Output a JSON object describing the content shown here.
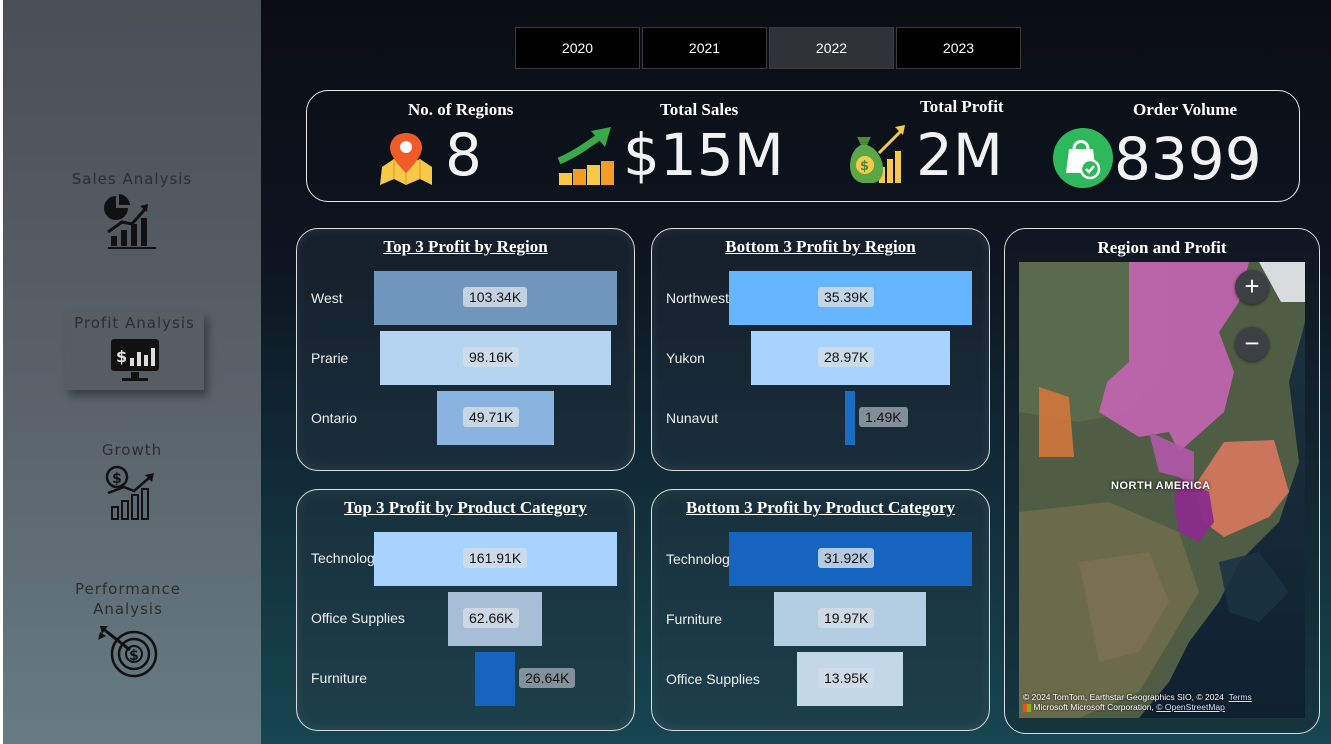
{
  "sidebar": {
    "items": [
      {
        "label": "Sales Analysis",
        "icon": "pie-bar-chart-icon"
      },
      {
        "label": "Profit Analysis",
        "icon": "profit-monitor-icon"
      },
      {
        "label": "Growth",
        "icon": "growth-dollar-chart-icon"
      },
      {
        "label_line1": "Performance",
        "label_line2": "Analysis",
        "icon": "target-dollar-icon"
      }
    ]
  },
  "years": {
    "options": [
      "2020",
      "2021",
      "2022",
      "2023"
    ],
    "selected": "2022"
  },
  "kpis": {
    "regions": {
      "title": "No. of Regions",
      "value": "8",
      "icon": "map-pin-icon"
    },
    "sales": {
      "title": "Total Sales",
      "value": "$15M",
      "icon": "growth-bars-arrow-icon"
    },
    "profit": {
      "title": "Total Profit",
      "value": "2M",
      "icon": "money-bag-icon"
    },
    "orders": {
      "title": "Order Volume",
      "value": "8399",
      "icon": "shopping-bag-check-icon"
    }
  },
  "top_region": {
    "title": "Top 3 Profit by Region",
    "rows": [
      {
        "label": "West",
        "value_label": "103.34K",
        "value": 103.34,
        "color": "#7096bd"
      },
      {
        "label": "Prarie",
        "value_label": "98.16K",
        "value": 98.16,
        "color": "#b5d4f0"
      },
      {
        "label": "Ontario",
        "value_label": "49.71K",
        "value": 49.71,
        "color": "#8ab4e0"
      }
    ]
  },
  "bottom_region": {
    "title": "Bottom 3 Profit by Region",
    "rows": [
      {
        "label": "Northwest",
        "value_label": "35.39K",
        "value": 35.39,
        "color": "#66b6ff"
      },
      {
        "label": "Yukon",
        "value_label": "28.97K",
        "value": 28.97,
        "color": "#a8d3ff"
      },
      {
        "label": "Nunavut",
        "value_label": "1.49K",
        "value": 1.49,
        "color": "#1a6cc4"
      }
    ]
  },
  "top_category": {
    "title": "Top 3 Profit by Product Category",
    "rows": [
      {
        "label": "Technology",
        "value_label": "161.91K",
        "value": 161.91,
        "color": "#a8d3ff"
      },
      {
        "label": "Office Supplies",
        "value_label": "62.66K",
        "value": 62.66,
        "color": "#a6bfd6"
      },
      {
        "label": "Furniture",
        "value_label": "26.64K",
        "value": 26.64,
        "color": "#1565c0"
      }
    ]
  },
  "bottom_category": {
    "title": "Bottom 3 Profit by Product Category",
    "rows": [
      {
        "label": "Technology",
        "value_label": "31.92K",
        "value": 31.92,
        "color": "#1565c0"
      },
      {
        "label": "Furniture",
        "value_label": "19.97K",
        "value": 19.97,
        "color": "#b3cde2"
      },
      {
        "label": "Office Supplies",
        "value_label": "13.95K",
        "value": 13.95,
        "color": "#c2d7e8"
      }
    ]
  },
  "map": {
    "title": "Region and Profit",
    "zoom_in": "+",
    "zoom_out": "−",
    "place_label": "NORTH AMERICA",
    "credit_line1": "© 2024 TomTom, Earthstar Geographics SIO, © 2024",
    "credit_terms": "Terms",
    "credit_line2": "Microsoft Corporation,",
    "credit_osm": "© OpenStreetMap",
    "ms_label": "Microsoft"
  }
}
